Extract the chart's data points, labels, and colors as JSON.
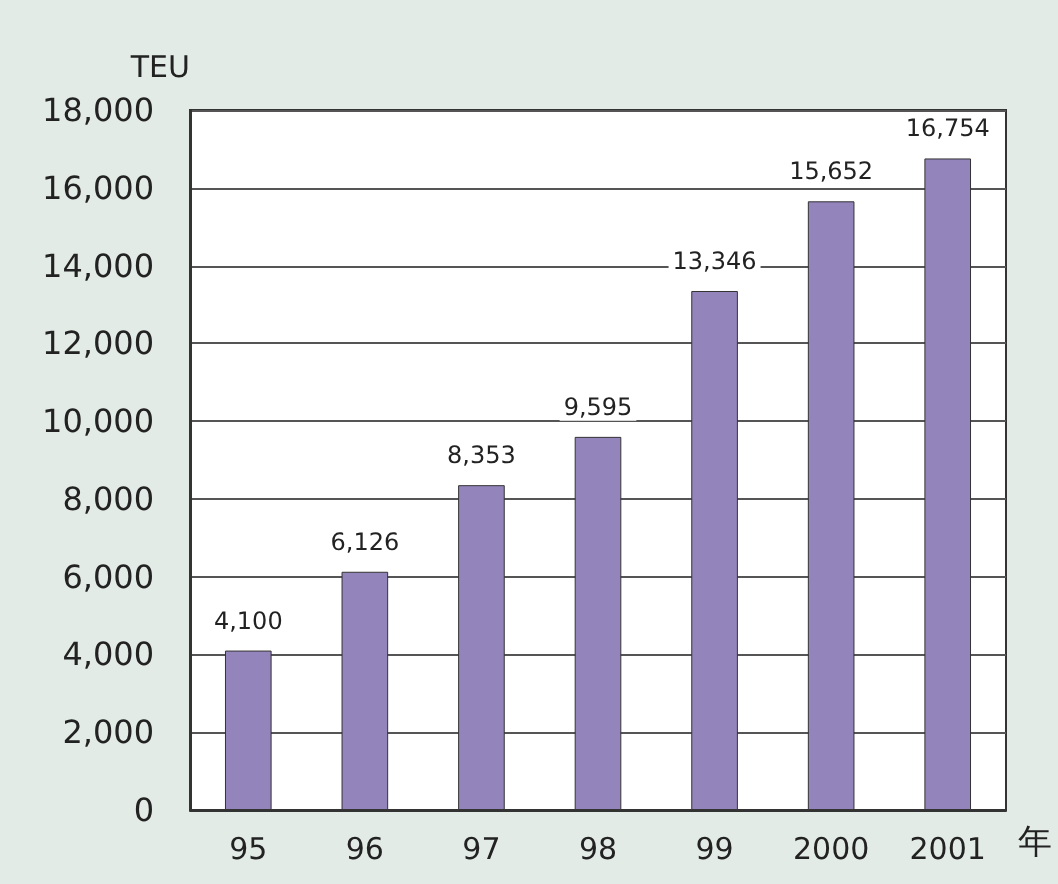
{
  "chart_data": {
    "type": "bar",
    "xlabel": "年",
    "ylabel": "TEU",
    "categories": [
      "95",
      "96",
      "97",
      "98",
      "99",
      "2000",
      "2001"
    ],
    "values": [
      4100,
      6126,
      8353,
      9595,
      13346,
      15652,
      16754
    ],
    "value_labels": [
      "4,100",
      "6,126",
      "8,353",
      "9,595",
      "13,346",
      "15,652",
      "16,754"
    ],
    "color": "#9484bc",
    "ylim": [
      0,
      18000
    ],
    "yticks": [
      {
        "value": 0,
        "label": "0"
      },
      {
        "value": 2000,
        "label": "2,000"
      },
      {
        "value": 4000,
        "label": "4,000"
      },
      {
        "value": 6000,
        "label": "6,000"
      },
      {
        "value": 8000,
        "label": "8,000"
      },
      {
        "value": 10000,
        "label": "10,000"
      },
      {
        "value": 12000,
        "label": "12,000"
      },
      {
        "value": 14000,
        "label": "14,000"
      },
      {
        "value": 16000,
        "label": "16,000"
      },
      {
        "value": 18000,
        "label": "18,000"
      }
    ],
    "grid": "y"
  }
}
